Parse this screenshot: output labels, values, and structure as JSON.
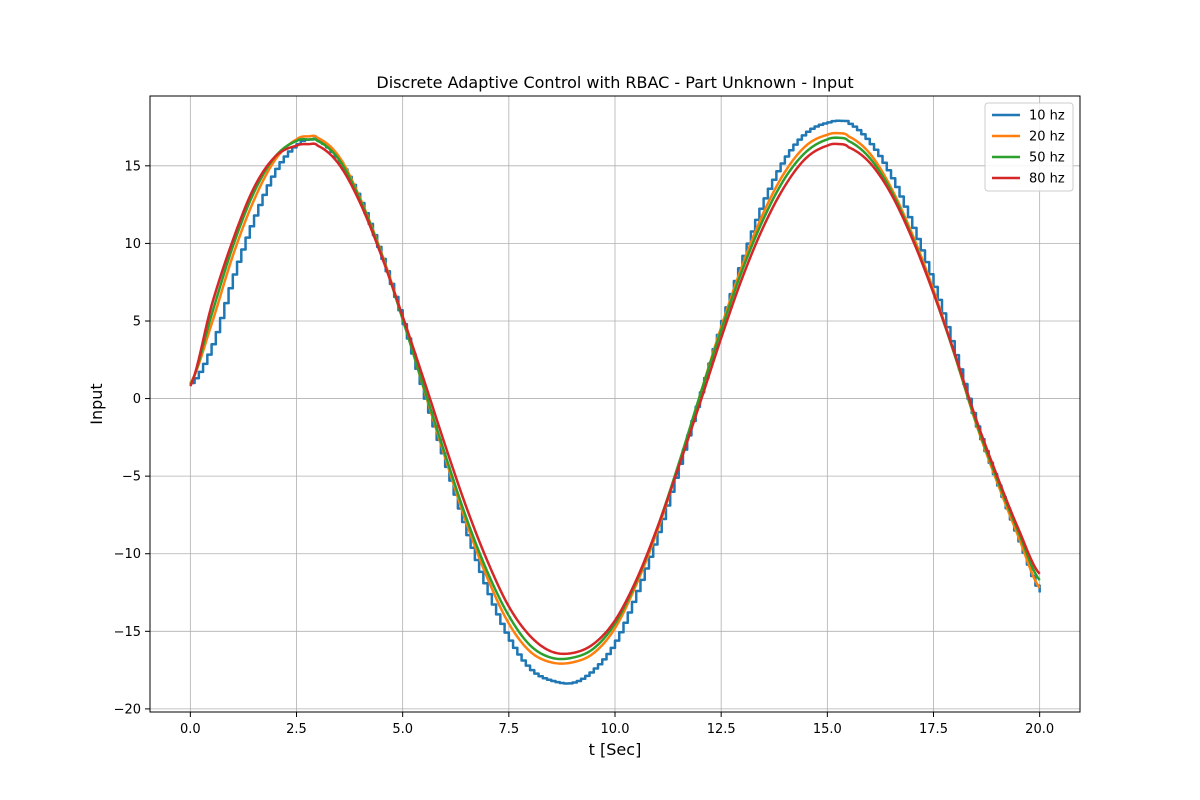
{
  "chart_data": {
    "type": "line",
    "title": "Discrete Adaptive Control with RBAC - Part Unknown - Input",
    "xlabel": "t [Sec]",
    "ylabel": "Input",
    "xlim": [
      -0.95,
      20.95
    ],
    "ylim": [
      -20.2,
      19.5
    ],
    "xticks": [
      0.0,
      2.5,
      5.0,
      7.5,
      10.0,
      12.5,
      15.0,
      17.5,
      20.0
    ],
    "xtick_labels": [
      "0.0",
      "2.5",
      "5.0",
      "7.5",
      "10.0",
      "12.5",
      "15.0",
      "17.5",
      "20.0"
    ],
    "yticks": [
      -20,
      -15,
      -10,
      -5,
      0,
      5,
      10,
      15
    ],
    "ytick_labels": [
      "−20",
      "−15",
      "−10",
      "−5",
      "0",
      "5",
      "10",
      "15"
    ],
    "grid": true,
    "legend_position": "top-right",
    "series": [
      {
        "name": "10 hz",
        "color": "#1f77b4",
        "step": true,
        "x": [
          0,
          0.5,
          1.0,
          1.5,
          2.0,
          2.5,
          2.8,
          3.0,
          3.5,
          4.0,
          4.5,
          5.0,
          5.5,
          6.0,
          6.5,
          7.0,
          7.5,
          8.0,
          8.5,
          9.0,
          9.5,
          10.0,
          10.5,
          11.0,
          11.5,
          12.0,
          12.5,
          13.0,
          13.5,
          14.0,
          14.5,
          15.0,
          15.3,
          15.5,
          16.0,
          16.5,
          17.0,
          17.5,
          18.0,
          18.5,
          19.0,
          19.5,
          20.0
        ],
        "y": [
          1.0,
          3.5,
          8.0,
          11.8,
          14.8,
          16.4,
          16.7,
          16.6,
          15.2,
          12.6,
          9.0,
          4.8,
          0.0,
          -4.4,
          -8.8,
          -12.6,
          -15.6,
          -17.5,
          -18.2,
          -18.3,
          -17.4,
          -15.6,
          -12.4,
          -8.6,
          -4.2,
          0.4,
          5.0,
          9.2,
          12.9,
          15.6,
          17.2,
          17.8,
          17.9,
          17.7,
          16.4,
          14.2,
          11.0,
          7.2,
          2.8,
          -1.8,
          -5.6,
          -9.2,
          -12.5
        ]
      },
      {
        "name": "20 hz",
        "color": "#ff7f0e",
        "step": false,
        "x": [
          0,
          0.5,
          1.0,
          1.5,
          2.0,
          2.5,
          2.8,
          3.0,
          3.5,
          4.0,
          4.5,
          5.0,
          5.5,
          6.0,
          6.5,
          7.0,
          7.5,
          8.0,
          8.5,
          9.0,
          9.5,
          10.0,
          10.5,
          11.0,
          11.5,
          12.0,
          12.5,
          13.0,
          13.5,
          14.0,
          14.5,
          15.0,
          15.3,
          15.5,
          16.0,
          16.5,
          17.0,
          17.5,
          18.0,
          18.5,
          19.0,
          19.5,
          20.0
        ],
        "y": [
          1.0,
          4.8,
          9.2,
          12.8,
          15.4,
          16.7,
          16.9,
          16.8,
          15.6,
          12.9,
          9.4,
          5.2,
          0.6,
          -3.8,
          -8.0,
          -11.6,
          -14.5,
          -16.3,
          -17.0,
          -17.0,
          -16.4,
          -14.8,
          -12.0,
          -8.5,
          -4.3,
          0.2,
          4.6,
          8.6,
          12.0,
          14.6,
          16.3,
          17.0,
          17.1,
          16.9,
          15.8,
          13.6,
          10.6,
          7.0,
          2.8,
          -1.6,
          -5.4,
          -8.9,
          -12.2
        ]
      },
      {
        "name": "50 hz",
        "color": "#2ca02c",
        "step": false,
        "x": [
          0,
          0.5,
          1.0,
          1.5,
          2.0,
          2.5,
          2.8,
          3.0,
          3.5,
          4.0,
          4.5,
          5.0,
          5.5,
          6.0,
          6.5,
          7.0,
          7.5,
          8.0,
          8.5,
          9.0,
          9.5,
          10.0,
          10.5,
          11.0,
          11.5,
          12.0,
          12.5,
          13.0,
          13.5,
          14.0,
          14.5,
          15.0,
          15.3,
          15.5,
          16.0,
          16.5,
          17.0,
          17.5,
          18.0,
          18.5,
          19.0,
          19.5,
          20.0
        ],
        "y": [
          0.9,
          5.4,
          9.8,
          13.3,
          15.6,
          16.6,
          16.7,
          16.6,
          15.4,
          12.8,
          9.3,
          5.1,
          0.7,
          -3.6,
          -7.7,
          -11.2,
          -14.0,
          -15.9,
          -16.7,
          -16.7,
          -16.1,
          -14.5,
          -11.8,
          -8.3,
          -4.2,
          0.2,
          4.4,
          8.3,
          11.6,
          14.2,
          15.9,
          16.7,
          16.8,
          16.6,
          15.5,
          13.4,
          10.4,
          6.8,
          2.8,
          -1.5,
          -5.2,
          -8.6,
          -11.7
        ]
      },
      {
        "name": "80 hz",
        "color": "#d62728",
        "step": false,
        "x": [
          0,
          0.5,
          1.0,
          1.5,
          2.0,
          2.5,
          2.8,
          3.0,
          3.5,
          4.0,
          4.5,
          5.0,
          5.5,
          6.0,
          6.5,
          7.0,
          7.5,
          8.0,
          8.5,
          9.0,
          9.5,
          10.0,
          10.5,
          11.0,
          11.5,
          12.0,
          12.5,
          13.0,
          13.5,
          14.0,
          14.5,
          15.0,
          15.3,
          15.5,
          16.0,
          16.5,
          17.0,
          17.5,
          18.0,
          18.5,
          19.0,
          19.5,
          20.0
        ],
        "y": [
          0.8,
          6.0,
          10.2,
          13.6,
          15.6,
          16.3,
          16.4,
          16.3,
          15.1,
          12.6,
          9.2,
          5.3,
          1.2,
          -3.0,
          -7.0,
          -10.5,
          -13.4,
          -15.3,
          -16.3,
          -16.4,
          -15.8,
          -14.3,
          -11.7,
          -8.3,
          -4.4,
          -0.3,
          3.9,
          7.8,
          11.1,
          13.7,
          15.5,
          16.3,
          16.4,
          16.2,
          15.2,
          13.2,
          10.3,
          6.8,
          2.9,
          -1.3,
          -5.0,
          -8.4,
          -11.3
        ]
      }
    ]
  }
}
